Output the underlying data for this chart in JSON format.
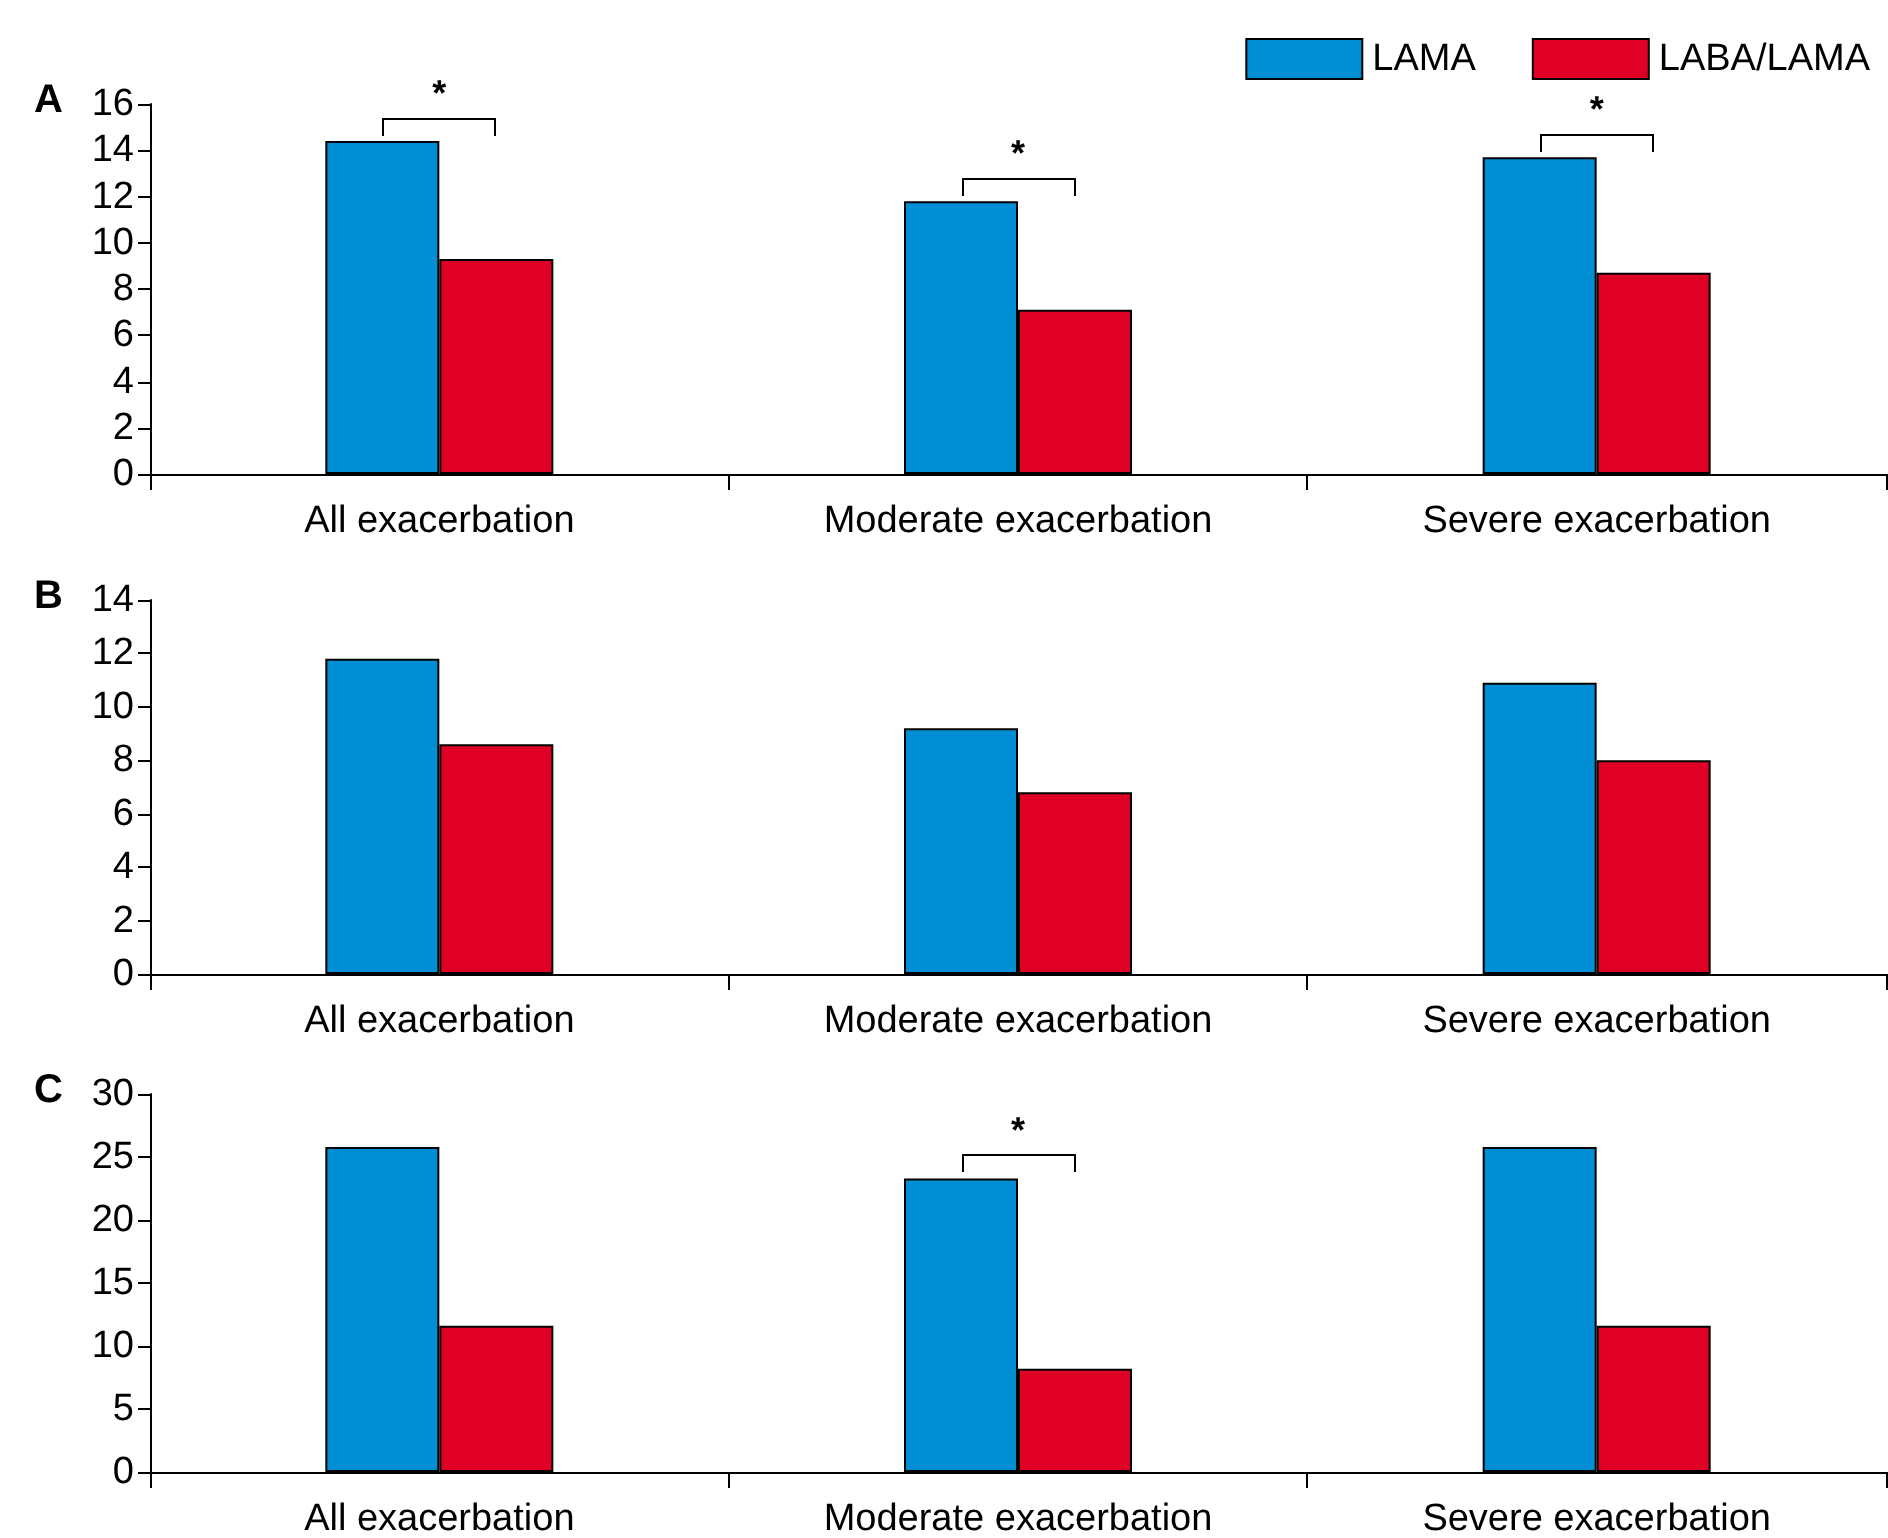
{
  "chart_data": [
    {
      "type": "bar",
      "title": "A",
      "categories": [
        "All exacerbation",
        "Moderate exacerbation",
        "Severe exacerbation"
      ],
      "series": [
        {
          "name": "LAMA",
          "color": "#008fd5",
          "values": [
            14.4,
            11.8,
            13.7
          ]
        },
        {
          "name": "LABA/LAMA",
          "color": "#e00025",
          "values": [
            9.3,
            7.1,
            8.7
          ]
        }
      ],
      "ylim": [
        0,
        16
      ],
      "yticks": [
        0,
        2,
        4,
        6,
        8,
        10,
        12,
        14,
        16
      ],
      "legend": "top right",
      "annotations": [
        {
          "text": "*",
          "x": "All exacerbation",
          "y": 14.4
        },
        {
          "text": "*",
          "x": "Moderate exacerbation",
          "y": 11.8
        },
        {
          "text": "*",
          "x": "Severe exacerbation",
          "y": 13.7
        }
      ]
    },
    {
      "type": "bar",
      "title": "B",
      "categories": [
        "All exacerbation",
        "Moderate exacerbation",
        "Severe exacerbation"
      ],
      "series": [
        {
          "color": "#008fd5",
          "values": [
            11.8,
            9.2,
            10.9
          ]
        },
        {
          "color": "#e00025",
          "values": [
            8.6,
            6.8,
            8.0
          ]
        }
      ],
      "ylim": [
        0,
        14
      ],
      "yticks": [
        0,
        2,
        4,
        6,
        8,
        10,
        12,
        14
      ]
    },
    {
      "type": "bar",
      "title": "C",
      "categories": [
        "All exacerbation",
        "Moderate exacerbation",
        "Severe exacerbation"
      ],
      "series": [
        {
          "color": "#008fd5",
          "values": [
            25.8,
            23.3,
            25.8
          ]
        },
        {
          "color": "#e00025",
          "values": [
            11.6,
            8.2,
            11.6
          ]
        }
      ],
      "ylim": [
        0,
        30
      ],
      "yticks": [
        0,
        5,
        10,
        15,
        20,
        25,
        30
      ],
      "annotations": [
        {
          "text": "*",
          "x": "Moderate exacerbation",
          "y": 23.3
        }
      ]
    }
  ]
}
